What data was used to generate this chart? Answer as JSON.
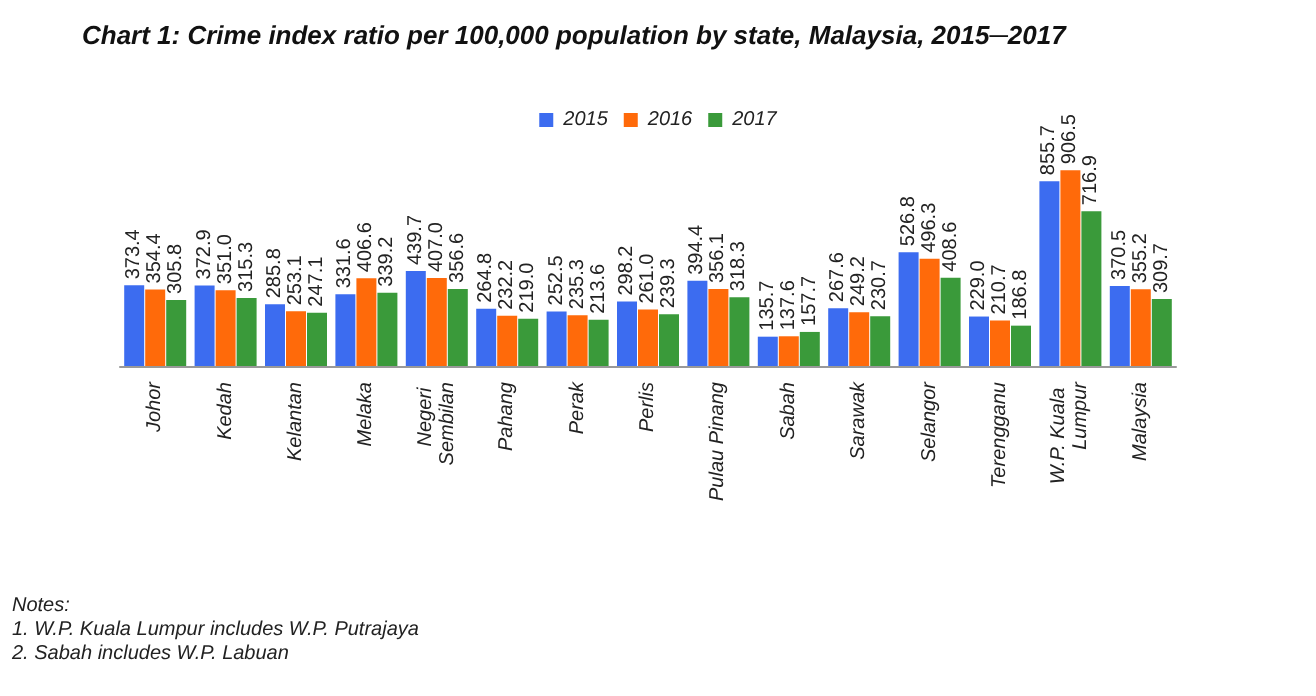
{
  "chart_data": {
    "type": "bar",
    "title": "Chart 1: Crime index ratio per 100,000 population by state, Malaysia, 2015─2017",
    "categories": [
      "Johor",
      "Kedah",
      "Kelantan",
      "Melaka",
      "Negeri Sembilan",
      "Pahang",
      "Perak",
      "Perlis",
      "Pulau Pinang",
      "Sabah",
      "Sarawak",
      "Selangor",
      "Terengganu",
      "W.P. Kuala Lumpur",
      "Malaysia"
    ],
    "series": [
      {
        "name": "2015",
        "color": "#3c6cf0",
        "values": [
          373.4,
          372.9,
          285.8,
          331.6,
          439.7,
          264.8,
          252.5,
          298.2,
          394.4,
          135.7,
          267.6,
          526.8,
          229,
          855.7,
          370.5
        ],
        "value_labels": [
          "373.4",
          "372.9",
          "285.8",
          "331.6",
          "439.7",
          "264.8",
          "252.5",
          "298.2",
          "394.4",
          "135.7",
          "267.6",
          "526.8",
          "229.0",
          "855.7",
          "370.5"
        ]
      },
      {
        "name": "2016",
        "color": "#ff6a0a",
        "values": [
          354.4,
          351,
          253.1,
          406.6,
          407,
          232.2,
          235.3,
          261,
          356.1,
          137.6,
          249.2,
          496.3,
          210.7,
          906.5,
          355.2
        ],
        "value_labels": [
          "354.4",
          "351.0",
          "253.1",
          "406.6",
          "407.0",
          "232.2",
          "235.3",
          "261.0",
          "356.1",
          "137.6",
          "249.2",
          "496.3",
          "210.7",
          "906.5",
          "355.2"
        ]
      },
      {
        "name": "2017",
        "color": "#3a9a3a",
        "values": [
          305.8,
          315.3,
          247.1,
          339.2,
          356.6,
          219,
          213.6,
          239.3,
          318.3,
          157.7,
          230.7,
          408.6,
          186.8,
          716.9,
          309.7
        ],
        "value_labels": [
          "305.8",
          "315.3",
          "247.1",
          "339.2",
          "356.6",
          "219.0",
          "213.6",
          "239.3",
          "318.3",
          "157.7",
          "230.7",
          "408.6",
          "186.8",
          "716.9",
          "309.7"
        ]
      }
    ],
    "legend": "top",
    "annotations": [
      "Notes:",
      "1. W.P. Kuala Lumpur includes W.P. Putrajaya",
      "2. Sabah includes W.P. Labuan"
    ]
  }
}
